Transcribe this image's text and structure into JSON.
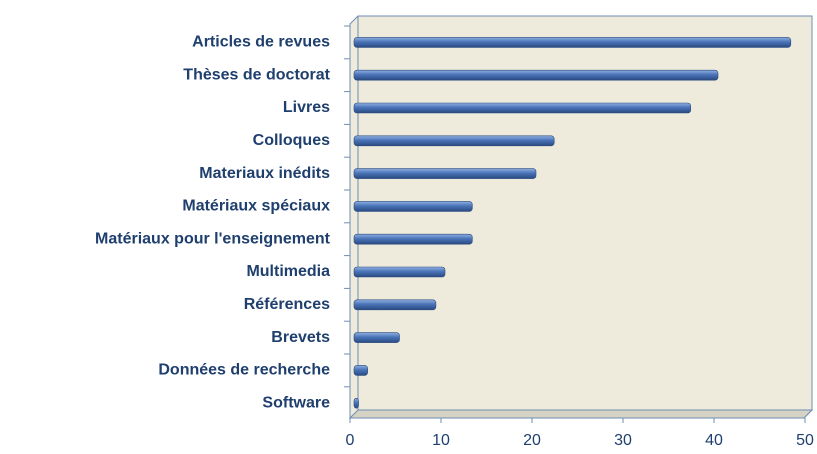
{
  "chart_data": {
    "type": "bar",
    "orientation": "horizontal",
    "categories": [
      "Articles de revues",
      "Thèses de doctorat",
      "Livres",
      "Colloques",
      "Materiaux inédits",
      "Matériaux spéciaux",
      "Matériaux pour l'enseignement",
      "Multimedia",
      "Références",
      "Brevets",
      "Données de recherche",
      "Software"
    ],
    "values": [
      48,
      40,
      37,
      22,
      20,
      13,
      13,
      10,
      9,
      5,
      1.5,
      0.5
    ],
    "color": "#4a74b8",
    "xlim": [
      0,
      50
    ],
    "xticks": [
      0,
      10,
      20,
      30,
      40,
      50
    ]
  }
}
